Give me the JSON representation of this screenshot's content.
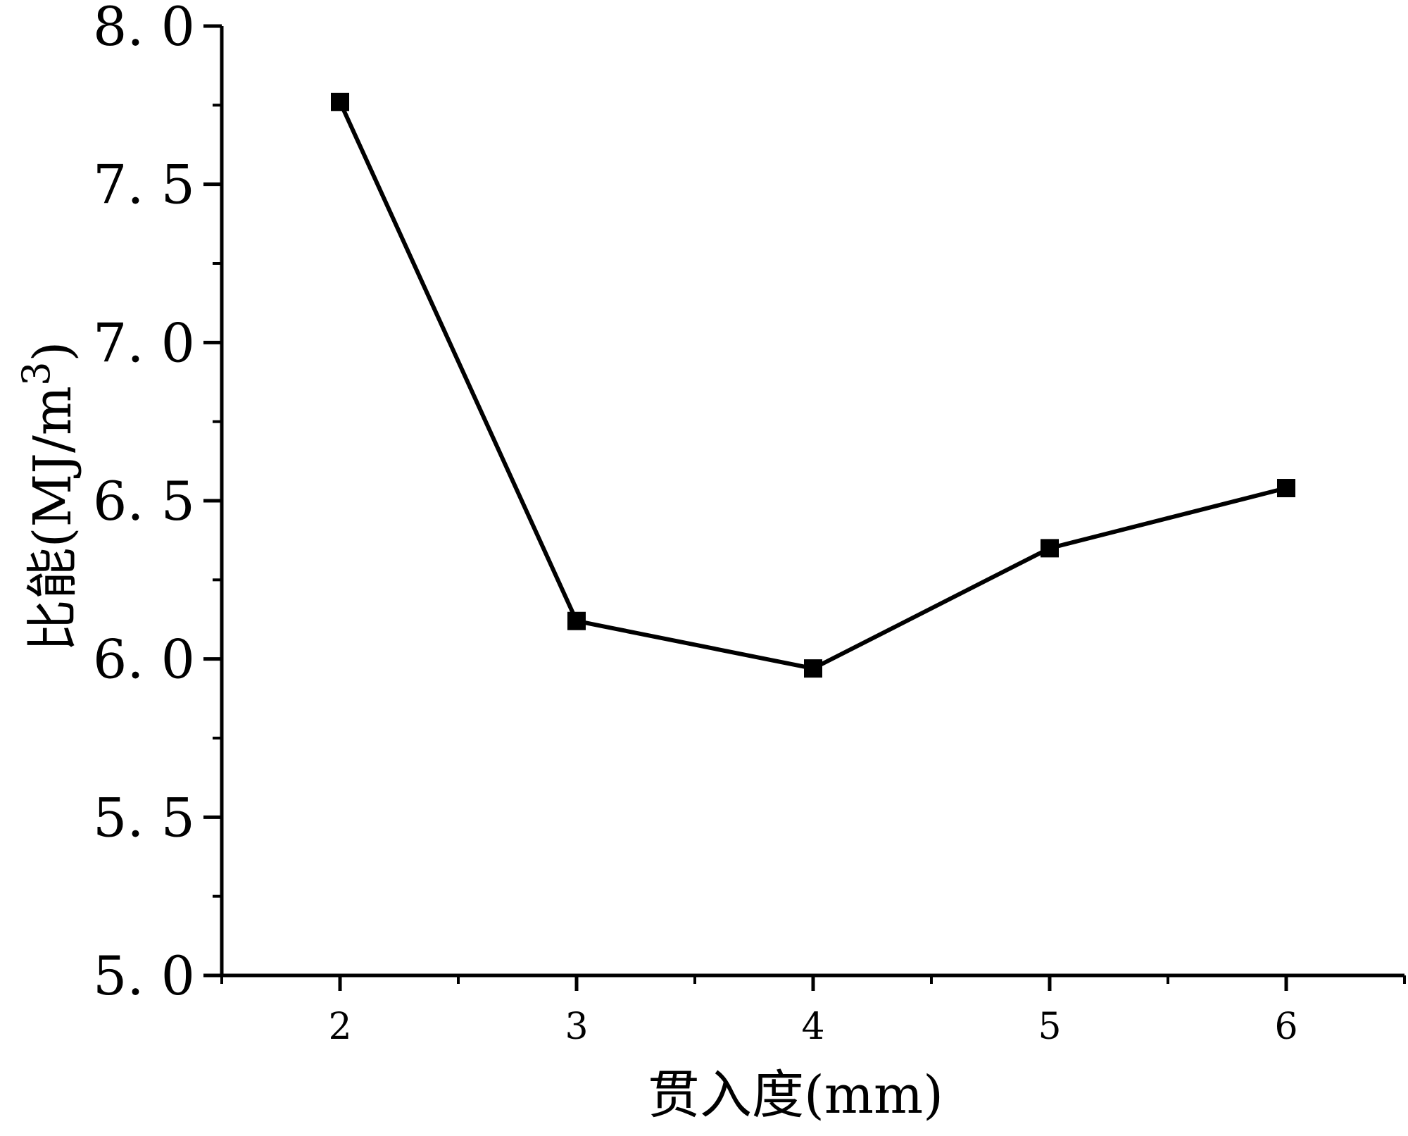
{
  "chart_data": {
    "type": "line",
    "xlabel": "贯入度(mm)",
    "ylabel": "比能(MJ/m3)",
    "ylabel_main": "比能(MJ/m",
    "ylabel_superscript": "3",
    "ylabel_close": ")",
    "xlim": [
      1.5,
      6.5
    ],
    "ylim": [
      5.0,
      8.0
    ],
    "x_ticks": [
      2,
      3,
      4,
      5,
      6
    ],
    "x_tick_labels": [
      "2",
      "3",
      "4",
      "5",
      "6"
    ],
    "y_ticks": [
      5.0,
      5.5,
      6.0,
      6.5,
      7.0,
      7.5,
      8.0
    ],
    "y_tick_labels": [
      "5. 0",
      "5. 5",
      "6. 0",
      "6. 5",
      "7. 0",
      "7. 5",
      "8. 0"
    ],
    "grid": false,
    "legend": "none",
    "marker": "square",
    "color": "#000000",
    "series": [
      {
        "x": [
          2,
          3,
          4,
          5,
          6
        ],
        "y": [
          7.76,
          6.12,
          5.97,
          6.35,
          6.54
        ]
      }
    ]
  }
}
